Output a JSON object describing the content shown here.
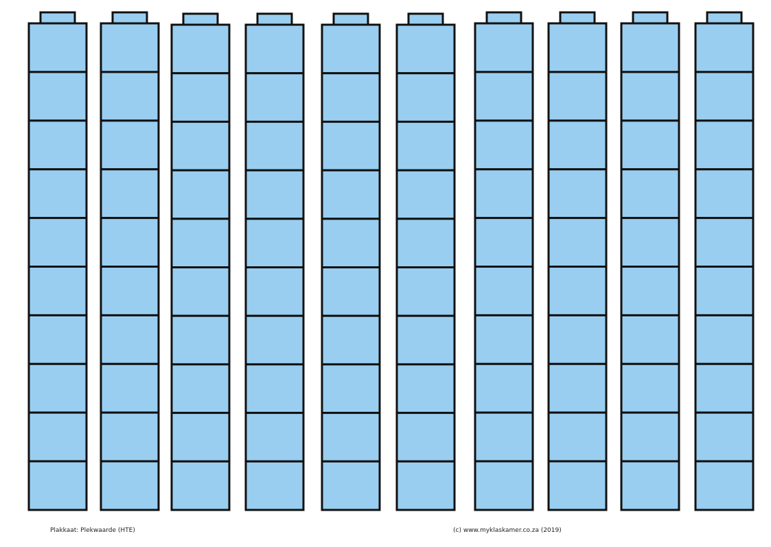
{
  "footer": {
    "left": "Plakkaat: Plekwaarde (HTE)",
    "right": "(c) www.myklaskamer.co.za (2019)"
  }
}
